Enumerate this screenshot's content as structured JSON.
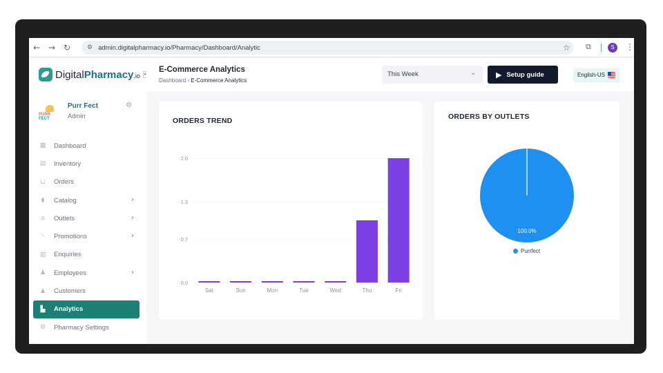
{
  "browser": {
    "url": "admin.digitalpharmacy.io/Pharmacy/Dashboard/Analytic",
    "profile_initial": "S"
  },
  "logo": {
    "prefix": "Digital",
    "highlight": "Pharmacy",
    "suffix": ".io"
  },
  "profile": {
    "name": "Purr Fect",
    "role": "Admin",
    "brand_word_a": "PURR",
    "brand_word_b": "FECT"
  },
  "sidebar": {
    "items": [
      {
        "label": "Dashboard",
        "icon": "dashboard-icon",
        "glyph": "▦",
        "chevron": ""
      },
      {
        "label": "Inventory",
        "icon": "inventory-icon",
        "glyph": "▤",
        "chevron": ""
      },
      {
        "label": "Orders",
        "icon": "cart-icon",
        "glyph": "⊔",
        "chevron": ""
      },
      {
        "label": "Catalog",
        "icon": "pill-icon",
        "glyph": "◖",
        "chevron": "›"
      },
      {
        "label": "Outlets",
        "icon": "store-icon",
        "glyph": "⌂",
        "chevron": "›"
      },
      {
        "label": "Promotions",
        "icon": "promo-icon",
        "glyph": "◝",
        "chevron": "›"
      },
      {
        "label": "Enquiries",
        "icon": "clipboard-icon",
        "glyph": "▥",
        "chevron": ""
      },
      {
        "label": "Employees",
        "icon": "employees-icon",
        "glyph": "♟",
        "chevron": "›"
      },
      {
        "label": "Customers",
        "icon": "customers-icon",
        "glyph": "♟",
        "chevron": ""
      },
      {
        "label": "Analytics",
        "icon": "analytics-icon",
        "glyph": "▙",
        "chevron": "",
        "active": true
      },
      {
        "label": "Pharmacy Settings",
        "icon": "settings-icon",
        "glyph": "⚙",
        "chevron": ""
      }
    ]
  },
  "header": {
    "title": "E-Commerce Analytics",
    "breadcrumb_root": "Dashboard",
    "breadcrumb_sep": "›",
    "breadcrumb_current": "E-Commerce Analytics",
    "period": "This Week",
    "setup_label": "Setup guide",
    "language": "English-US"
  },
  "colors": {
    "bar": "#7b3fe4",
    "pie": "#1e90f0",
    "accent": "#1c8077"
  },
  "chart_data": [
    {
      "type": "bar",
      "title": "ORDERS TREND",
      "categories": [
        "Sat",
        "Sun",
        "Mon",
        "Tue",
        "Wed",
        "Thu",
        "Fri"
      ],
      "values": [
        0,
        0,
        0,
        0,
        0,
        1,
        2
      ],
      "yticks": [
        "0.0",
        "0.7",
        "1.3",
        "2.0"
      ],
      "ylim": [
        0,
        2
      ],
      "grid": true
    },
    {
      "type": "pie",
      "title": "ORDERS BY OUTLETS",
      "labels": [
        "Purrfect"
      ],
      "values": [
        100
      ],
      "slice_label": "100.0%",
      "legend": "bottom"
    }
  ]
}
